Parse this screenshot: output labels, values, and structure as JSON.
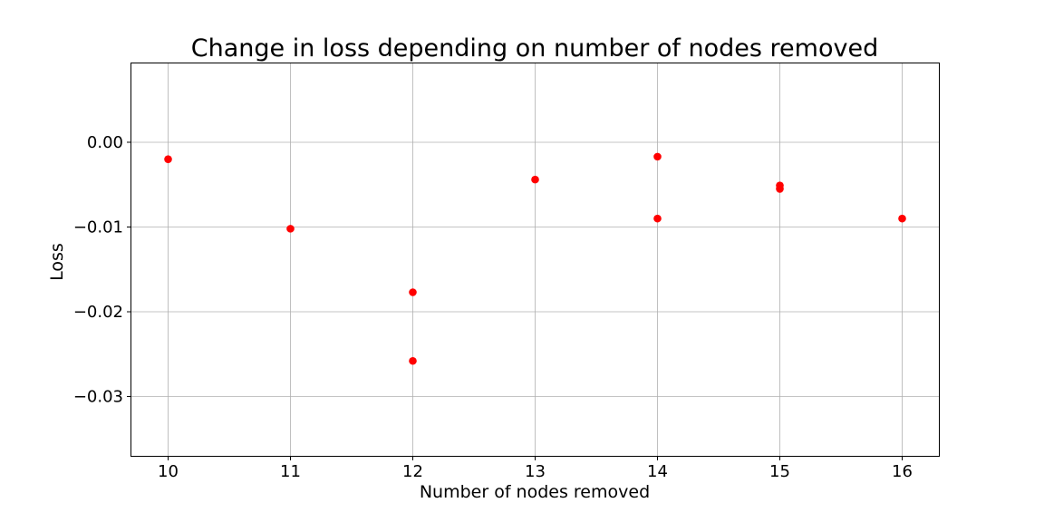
{
  "chart_data": {
    "type": "scatter",
    "title": "Change in loss depending on number of nodes removed",
    "xlabel": "Number of nodes removed",
    "ylabel": "Loss",
    "xlim": [
      9.7,
      16.3
    ],
    "ylim": [
      -0.037,
      0.0093
    ],
    "x_ticks": [
      10,
      11,
      12,
      13,
      14,
      15,
      16
    ],
    "x_tick_labels": [
      "10",
      "11",
      "12",
      "13",
      "14",
      "15",
      "16"
    ],
    "y_ticks": [
      0.0,
      -0.01,
      -0.02,
      -0.03
    ],
    "y_tick_labels": [
      "0.00",
      "−0.01",
      "−0.02",
      "−0.03"
    ],
    "grid": true,
    "marker_color": "#ff0000",
    "series": [
      {
        "x": [
          10,
          11,
          12,
          12,
          13,
          14,
          14,
          15,
          15,
          16
        ],
        "y": [
          -0.002,
          -0.0102,
          -0.0177,
          -0.0258,
          -0.0044,
          -0.0017,
          -0.009,
          -0.0051,
          -0.0055,
          -0.009
        ]
      }
    ]
  }
}
